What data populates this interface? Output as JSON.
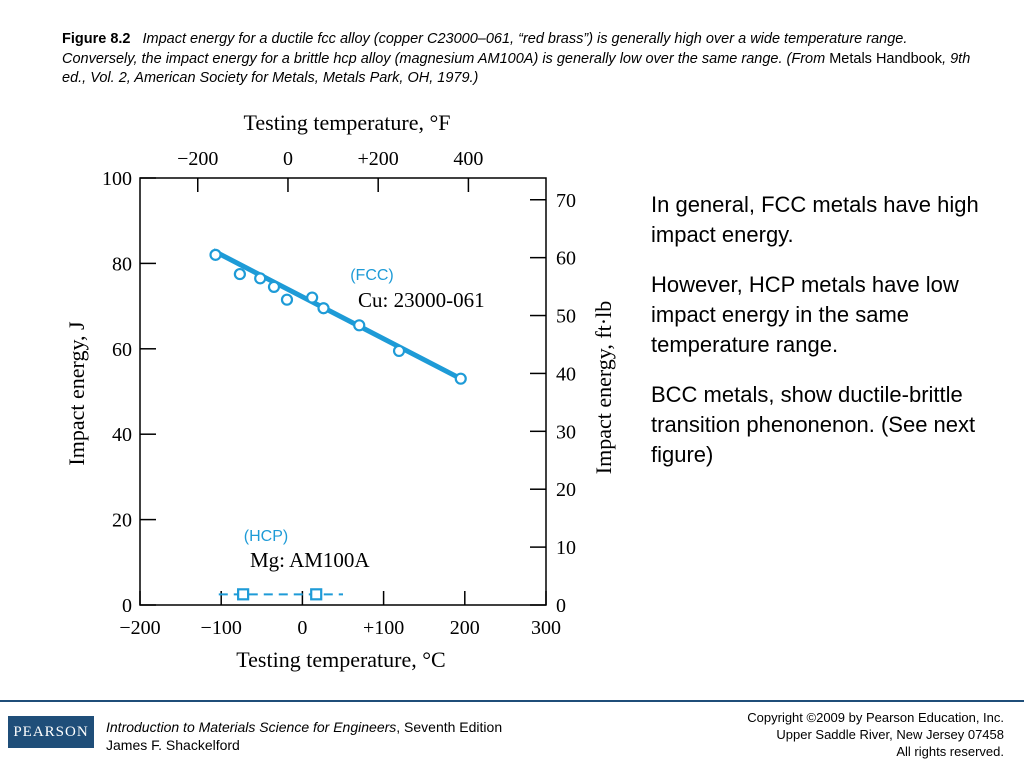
{
  "caption": {
    "label": "Figure 8.2",
    "text_a": "Impact energy for a ductile fcc alloy (copper C23000–061, “red brass”) is generally high over a wide temperature range. Conversely, the impact energy for a brittle hcp alloy (magnesium AM100A) is generally low over the same range. (From ",
    "source_title": "Metals Handbook",
    "text_b": ", 9th ed., Vol. 2, American Society for Metals, Metals Park, OH, 1979.)"
  },
  "chart_data": {
    "type": "scatter",
    "x_label_bottom": "Testing temperature, °C",
    "x_label_top": "Testing temperature, °F",
    "y_label_left": "Impact energy, J",
    "y_label_right": "Impact energy, ft·lb",
    "xlim": [
      -200,
      300
    ],
    "ylim": [
      0,
      100
    ],
    "x_ticks_bottom": [
      "−200",
      "−100",
      "0",
      "+100",
      "200",
      "300"
    ],
    "x_ticks_bottom_values": [
      -200,
      -100,
      0,
      100,
      200,
      300
    ],
    "x_ticks_top": [
      "−200",
      "0",
      "+200",
      "400"
    ],
    "x_ticks_top_values_F": [
      -200,
      0,
      200,
      400
    ],
    "y_ticks_left": [
      "0",
      "20",
      "40",
      "60",
      "80",
      "100"
    ],
    "y_ticks_left_values": [
      0,
      20,
      40,
      60,
      80,
      100
    ],
    "y_ticks_right": [
      "0",
      "10",
      "20",
      "30",
      "40",
      "50",
      "60",
      "70"
    ],
    "y_ticks_right_values_ftlb": [
      0,
      10,
      20,
      30,
      40,
      50,
      60,
      70
    ],
    "grid": false,
    "series": [
      {
        "tag": "(FCC)",
        "name": "Cu: 23000-061",
        "marker": "circle",
        "line": "solid",
        "fit": [
          [
            -110,
            83
          ],
          [
            195,
            53
          ]
        ],
        "points": [
          [
            -107,
            82
          ],
          [
            -77,
            77.5
          ],
          [
            -52,
            76.5
          ],
          [
            -35,
            74.5
          ],
          [
            -19,
            71.5
          ],
          [
            12,
            72
          ],
          [
            26,
            69.5
          ],
          [
            70,
            65.5
          ],
          [
            119,
            59.5
          ],
          [
            195,
            53
          ]
        ]
      },
      {
        "tag": "(HCP)",
        "name": "Mg: AM100A",
        "marker": "square",
        "line": "dashed",
        "fit": [
          [
            -103,
            2.5
          ],
          [
            50,
            2.5
          ]
        ],
        "points": [
          [
            -73,
            2.5
          ],
          [
            17,
            2.5
          ]
        ]
      }
    ],
    "colors": {
      "series": "#1e9bd7",
      "label": "#1e9bd7",
      "axis": "#000000"
    }
  },
  "side_text": {
    "p1": "In general, FCC metals have high impact energy.",
    "p2": "However, HCP metals have low impact energy in the same temperature range.",
    "p3": "BCC metals, show ductile-brittle transition phenonenon. (See next figure)"
  },
  "footer": {
    "logo": "PEARSON",
    "book_title": "Introduction to Materials Science for Engineers",
    "book_edition": ", Seventh Edition",
    "author": "James F. Shackelford",
    "copyright_1": "Copyright ©2009 by Pearson Education, Inc.",
    "copyright_2": "Upper Saddle River, New Jersey 07458",
    "copyright_3": "All rights reserved."
  }
}
